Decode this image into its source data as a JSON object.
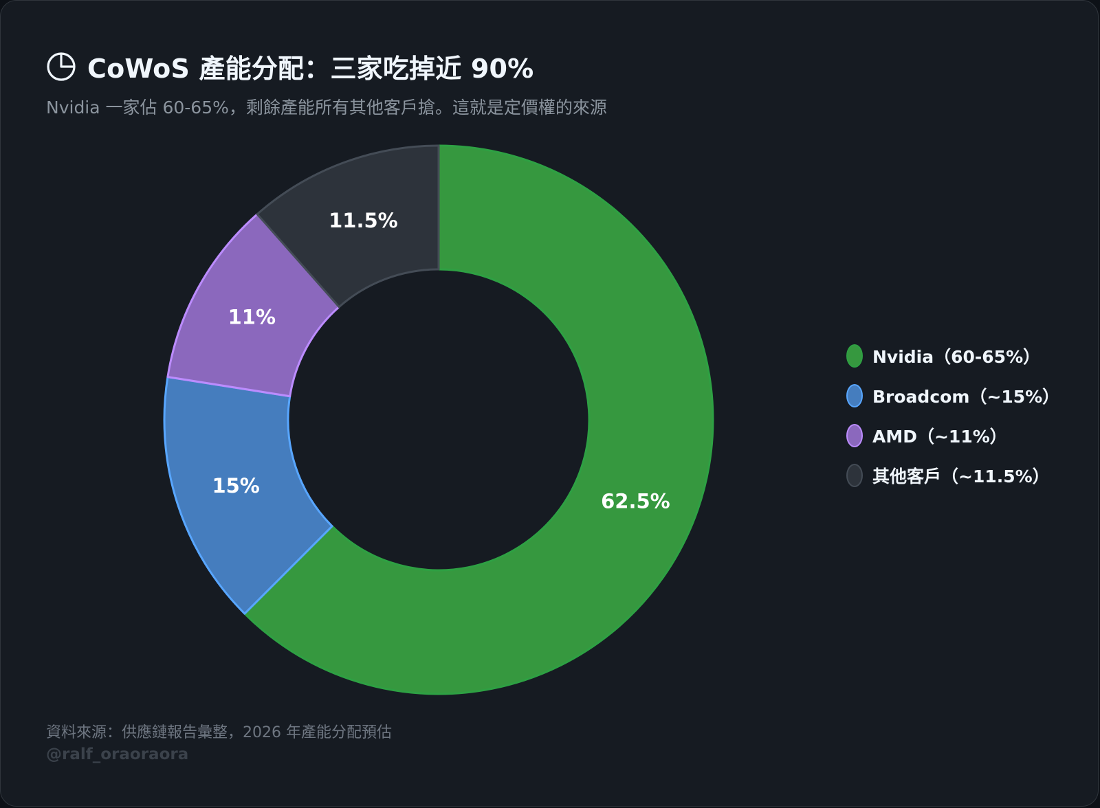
{
  "header": {
    "icon": "pie-chart-icon",
    "title": "CoWoS 產能分配：三家吃掉近 90%",
    "subtitle": "Nvidia 一家佔 60-65%，剩餘產能所有其他客戶搶。這就是定價權的來源"
  },
  "chart_data": {
    "type": "pie",
    "variant": "donut",
    "legend_position": "right",
    "start_angle": "top",
    "direction": "clockwise",
    "slices": [
      {
        "label": "Nvidia",
        "legend": "Nvidia（60-65%）",
        "value": 62.5,
        "value_label": "62.5%",
        "color": "#36983f",
        "border": "#2ea043"
      },
      {
        "label": "Broadcom",
        "legend": "Broadcom（~15%）",
        "value": 15,
        "value_label": "15%",
        "color": "#457dbe",
        "border": "#58a6ff"
      },
      {
        "label": "AMD",
        "legend": "AMD（~11%）",
        "value": 11,
        "value_label": "11%",
        "color": "#8b68bd",
        "border": "#bc8cff"
      },
      {
        "label": "其他客戶",
        "legend": "其他客戶（~11.5%）",
        "value": 11.5,
        "value_label": "11.5%",
        "color": "#2d333b",
        "border": "#444c56"
      }
    ]
  },
  "footer": {
    "source": "資料來源：供應鏈報告彙整，2026 年產能分配預估",
    "handle": "@ralf_oraoraora"
  }
}
